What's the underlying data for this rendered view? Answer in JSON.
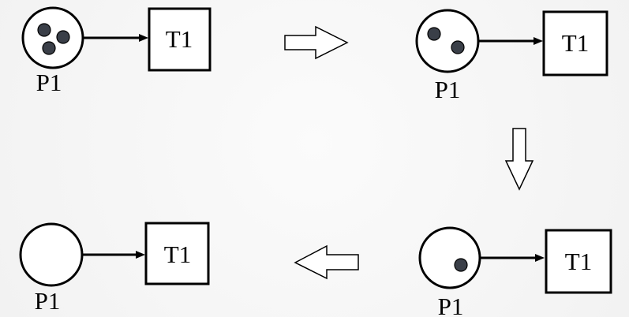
{
  "diagram": {
    "colors": {
      "stroke": "#000000",
      "token": "#3a3f48",
      "place_fill": "#ffffff",
      "transition_fill": "#ffffff",
      "step_arrow_fill": "#ffffff"
    },
    "states": [
      {
        "place_label": "P1",
        "transition_label": "T1",
        "tokens": 3
      },
      {
        "place_label": "P1",
        "transition_label": "T1",
        "tokens": 2
      },
      {
        "place_label": "P1",
        "transition_label": "T1",
        "tokens": 1
      },
      {
        "place_label": "P1",
        "transition_label": "T1",
        "tokens": 0
      }
    ],
    "step_arrows": [
      "right",
      "down",
      "left"
    ]
  }
}
